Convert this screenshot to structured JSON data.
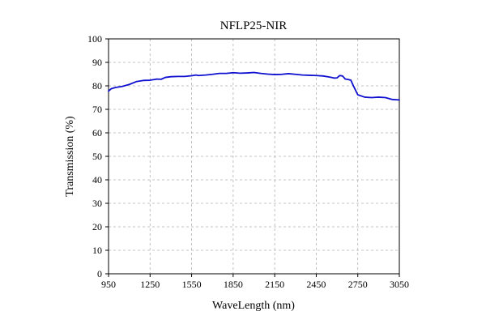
{
  "chart_data": {
    "type": "line",
    "title": "NFLP25-NIR",
    "xlabel": "WaveLength (nm)",
    "ylabel": "Transmission (%)",
    "xlim": [
      950,
      3050
    ],
    "ylim": [
      0,
      100
    ],
    "x_ticks": [
      950,
      1250,
      1550,
      1850,
      2150,
      2450,
      2750,
      3050
    ],
    "y_ticks": [
      0,
      10,
      20,
      30,
      40,
      50,
      60,
      70,
      80,
      90,
      100
    ],
    "grid": true,
    "line_color": "#1010d0",
    "series": [
      {
        "x": [
          950,
          970,
          1000,
          1050,
          1100,
          1150,
          1200,
          1250,
          1300,
          1330,
          1360,
          1400,
          1450,
          1500,
          1550,
          1580,
          1600,
          1650,
          1700,
          1750,
          1800,
          1850,
          1900,
          1950,
          2000,
          2050,
          2100,
          2150,
          2200,
          2250,
          2300,
          2350,
          2400,
          2450,
          2500,
          2550,
          2580,
          2600,
          2620,
          2640,
          2660,
          2680,
          2700,
          2720,
          2750,
          2800,
          2850,
          2900,
          2950,
          3000,
          3050
        ],
        "y": [
          77.8,
          78.8,
          79.3,
          79.8,
          80.6,
          81.8,
          82.3,
          82.4,
          82.9,
          82.8,
          83.6,
          83.9,
          84.0,
          84.0,
          84.3,
          84.6,
          84.4,
          84.6,
          84.9,
          85.3,
          85.3,
          85.6,
          85.4,
          85.5,
          85.7,
          85.3,
          85.0,
          84.8,
          84.9,
          85.2,
          84.9,
          84.6,
          84.5,
          84.4,
          84.2,
          83.7,
          83.3,
          83.4,
          84.4,
          84.2,
          82.9,
          82.7,
          82.4,
          79.8,
          76.2,
          75.2,
          75.0,
          75.2,
          75.0,
          74.2,
          74.0
        ]
      }
    ]
  }
}
